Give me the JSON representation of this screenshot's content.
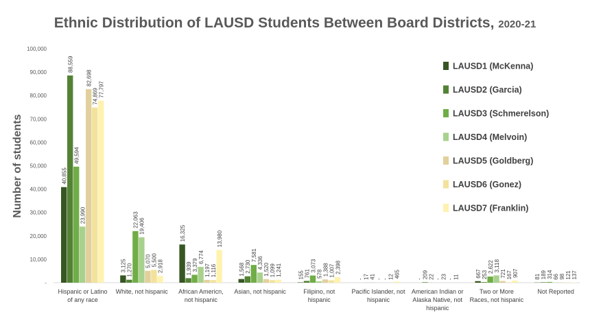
{
  "chart_data": {
    "type": "bar",
    "title": "Ethnic Distribution of LAUSD Students Between Board Districts,",
    "subtitle": "2020-21",
    "xlabel": "",
    "ylabel": "Number of students",
    "ylim": [
      0,
      100000
    ],
    "yticks": [
      "-",
      "10,000",
      "20,000",
      "30,000",
      "40,000",
      "50,000",
      "60,000",
      "70,000",
      "80,000",
      "90,000",
      "100,000"
    ],
    "grid": false,
    "legend_position": "right",
    "categories": [
      [
        "Hispanic or Latino",
        "of any race"
      ],
      [
        "White, not hispanic"
      ],
      [
        "African Americn,",
        "not hispanic"
      ],
      [
        "Asian, not hispanic"
      ],
      [
        "Filipino, not",
        "hispanic"
      ],
      [
        "Pacific Islander, not",
        "hispanic"
      ],
      [
        "American Indian or",
        "Alaska Native, not",
        "hispanic"
      ],
      [
        "Two or More",
        "Races, not hispanic"
      ],
      [
        "Not Reported"
      ]
    ],
    "series": [
      {
        "name": "LAUSD1 (McKenna)",
        "color": "#375623",
        "values": [
          40855,
          3125,
          16325,
          1568,
          155,
          0,
          0,
          667,
          81
        ],
        "labels": [
          "40,855",
          "3,125",
          "16,325",
          "1,568",
          "155",
          "-",
          "-",
          "667",
          "81"
        ]
      },
      {
        "name": "LAUSD2 (Garcia)",
        "color": "#548235",
        "values": [
          88559,
          1270,
          1939,
          2730,
          761,
          17,
          209,
          253,
          189
        ],
        "labels": [
          "88,559",
          "1,270",
          "1,939",
          "2,730",
          "761",
          "17",
          "209",
          "253",
          "189"
        ]
      },
      {
        "name": "LAUSD3 (Schmerelson)",
        "color": "#70AD47",
        "values": [
          49594,
          22063,
          3379,
          7581,
          3073,
          41,
          22,
          2622,
          314
        ],
        "labels": [
          "49,594",
          "22,063",
          "3,379",
          "7,581",
          "3,073",
          "41",
          "22",
          "2,622",
          "314"
        ]
      },
      {
        "name": "LAUSD4 (Melvoin)",
        "color": "#A9D18E",
        "values": [
          23990,
          19406,
          6774,
          4336,
          578,
          0,
          0,
          3118,
          66
        ],
        "labels": [
          "23,990",
          "19,406",
          "6,774",
          "4,336",
          "578",
          "-",
          "-",
          "3,118",
          "66"
        ]
      },
      {
        "name": "LAUSD5 (Goldberg)",
        "color": "#E2D09C",
        "values": [
          82698,
          5070,
          1197,
          1520,
          1388,
          0,
          23,
          721,
          98
        ],
        "labels": [
          "82,698",
          "5,070",
          "1,197",
          "1,520",
          "1,388",
          "-",
          "23",
          "721",
          "98"
        ]
      },
      {
        "name": "LAUSD6 (Gonez)",
        "color": "#F2E29B",
        "values": [
          74869,
          5500,
          1116,
          1099,
          1007,
          12,
          0,
          167,
          121
        ],
        "labels": [
          "74,869",
          "5,500",
          "1,116",
          "1,099",
          "1,007",
          "12",
          "-",
          "167",
          "121"
        ]
      },
      {
        "name": "LAUSD7 (Franklin)",
        "color": "#FFF2AF",
        "values": [
          77797,
          2918,
          13980,
          1241,
          2398,
          465,
          11,
          907,
          137
        ],
        "labels": [
          "77,797",
          "2,918",
          "13,980",
          "1,241",
          "2,398",
          "465",
          "11",
          "907",
          "137"
        ]
      }
    ]
  }
}
